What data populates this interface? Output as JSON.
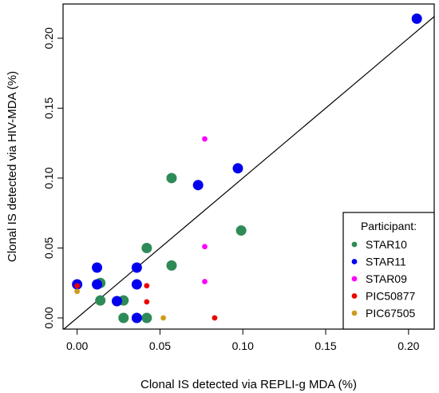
{
  "chart_data": {
    "type": "scatter",
    "xlabel": "Clonal IS detected via REPLI-g MDA (%)",
    "ylabel": "Clonal IS detected via HIV-MDA (%)",
    "xlim": [
      -0.0085,
      0.2155
    ],
    "ylim": [
      -0.008,
      0.2245
    ],
    "x_ticks": [
      0.0,
      0.05,
      0.1,
      0.15,
      0.2
    ],
    "x_tick_labels": [
      "0.00",
      "0.05",
      "0.10",
      "0.15",
      "0.20"
    ],
    "y_ticks": [
      0.0,
      0.05,
      0.1,
      0.15,
      0.2
    ],
    "y_tick_labels": [
      "0.00",
      "0.05",
      "0.10",
      "0.15",
      "0.20"
    ],
    "grid": false,
    "reference_line": {
      "type": "identity",
      "color": "#000000"
    },
    "legend": {
      "title": "Participant:",
      "placement": "bottom-right"
    },
    "series": [
      {
        "name": "STAR10",
        "color": "#2e8b57",
        "marker_size": "large",
        "points": [
          [
            0.057,
            0.1
          ],
          [
            0.099,
            0.0625
          ],
          [
            0.042,
            0.05
          ],
          [
            0.057,
            0.0375
          ],
          [
            0.014,
            0.025
          ],
          [
            0.014,
            0.0125
          ],
          [
            0.028,
            0.0125
          ],
          [
            0.028,
            0.0
          ],
          [
            0.042,
            0.0
          ]
        ]
      },
      {
        "name": "STAR11",
        "color": "#0000ee",
        "marker_size": "large",
        "points": [
          [
            0.205,
            0.214
          ],
          [
            0.097,
            0.107
          ],
          [
            0.073,
            0.095
          ],
          [
            0.012,
            0.036
          ],
          [
            0.036,
            0.036
          ],
          [
            0.0,
            0.024
          ],
          [
            0.012,
            0.024
          ],
          [
            0.036,
            0.024
          ],
          [
            0.024,
            0.012
          ],
          [
            0.036,
            0.0
          ]
        ]
      },
      {
        "name": "STAR09",
        "color": "#ff00ff",
        "marker_size": "small",
        "points": [
          [
            0.077,
            0.128
          ],
          [
            0.077,
            0.051
          ],
          [
            0.077,
            0.026
          ]
        ]
      },
      {
        "name": "PIC50877",
        "color": "#ee0000",
        "marker_size": "small",
        "points": [
          [
            0.0,
            0.023
          ],
          [
            0.042,
            0.023
          ],
          [
            0.042,
            0.0115
          ],
          [
            0.083,
            0.0
          ]
        ]
      },
      {
        "name": "PIC67505",
        "color": "#cd9b1d",
        "marker_size": "small",
        "points": [
          [
            0.0,
            0.019
          ],
          [
            0.052,
            0.0
          ]
        ]
      }
    ]
  }
}
